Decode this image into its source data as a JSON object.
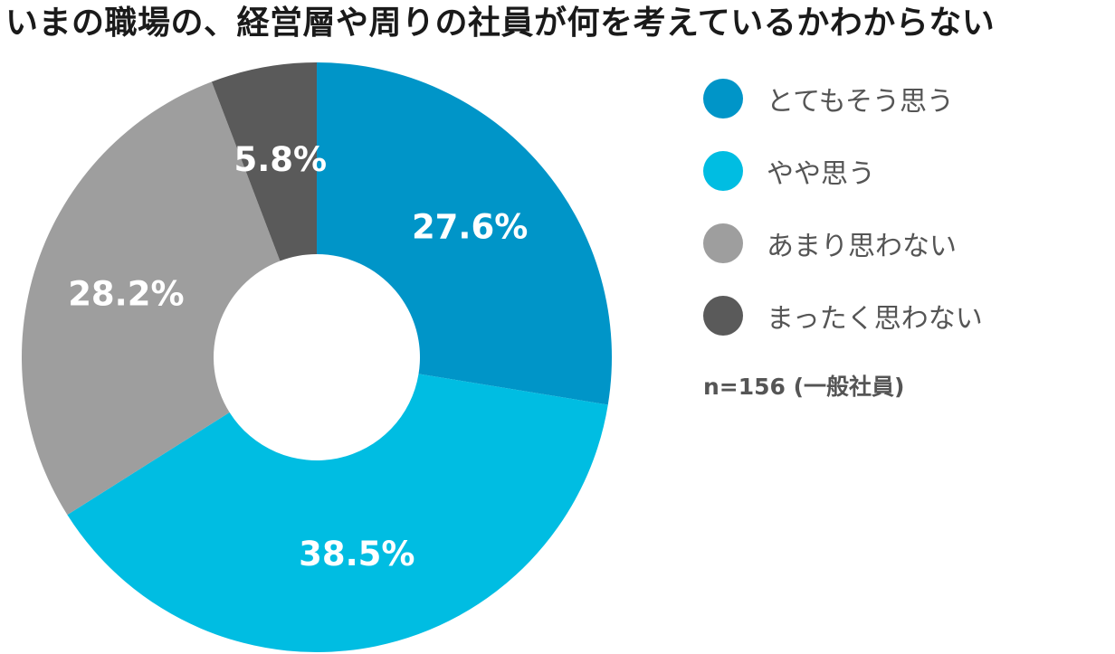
{
  "chart_data": {
    "type": "pie",
    "donut": true,
    "title": "いまの職場の、経営層や周りの社員が何を考えているかわからない",
    "categories": [
      "とてもそう思う",
      "やや思う",
      "あまり思わない",
      "まったく思わない"
    ],
    "values": [
      27.6,
      38.5,
      28.2,
      5.8
    ],
    "value_labels": [
      "27.6%",
      "38.5%",
      "28.2%",
      "5.8%"
    ],
    "colors": [
      "#0095c8",
      "#00bde2",
      "#9e9e9e",
      "#5a5a5a"
    ],
    "start": "top, clockwise",
    "legend_position": "right",
    "note": "n=156 (一般社員)"
  }
}
